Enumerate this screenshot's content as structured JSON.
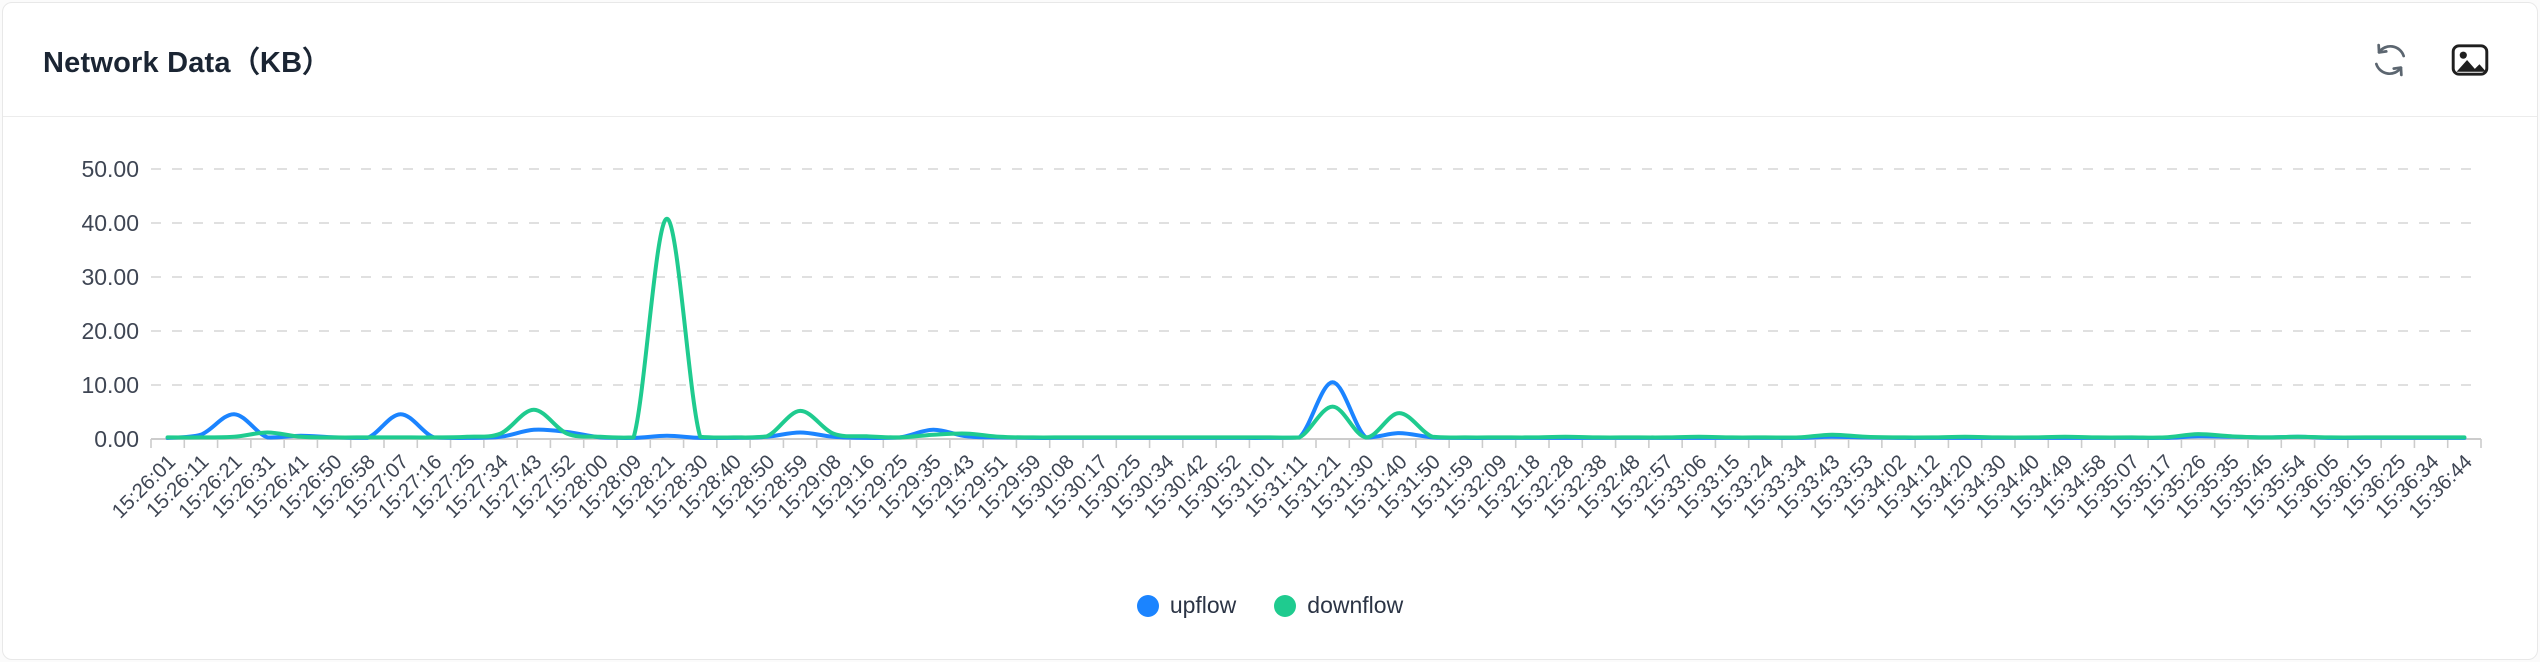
{
  "card": {
    "title": "Network Data（KB）"
  },
  "toolbar": {
    "icons": [
      "refresh-icon",
      "save-as-image-icon"
    ]
  },
  "colors": {
    "upflow": "#1b84ff",
    "downflow": "#1fcb8f",
    "axis_line": "#cccccc",
    "grid_line": "#d6d6d6",
    "tick_label": "#3f4654",
    "title_text": "#1b2533",
    "legend_text": "#2b3445",
    "card_border": "#e8e8e8",
    "refresh_icon": "#5c6670",
    "image_icon": "#1f1f1f"
  },
  "chart_data": {
    "type": "line",
    "title": "Network Data（KB）",
    "smooth": true,
    "grid": "dashed-horizontal",
    "legend_position": "bottom-center",
    "x_label_rotation": 45,
    "ylim": [
      0,
      50
    ],
    "yticks": [
      "0.00",
      "10.00",
      "20.00",
      "30.00",
      "40.00",
      "50.00"
    ],
    "x": [
      "15:26:01",
      "15:26:11",
      "15:26:21",
      "15:26:31",
      "15:26:41",
      "15:26:50",
      "15:26:58",
      "15:27:07",
      "15:27:16",
      "15:27:25",
      "15:27:34",
      "15:27:43",
      "15:27:52",
      "15:28:00",
      "15:28:09",
      "15:28:21",
      "15:28:30",
      "15:28:40",
      "15:28:50",
      "15:28:59",
      "15:29:08",
      "15:29:16",
      "15:29:25",
      "15:29:35",
      "15:29:43",
      "15:29:51",
      "15:29:59",
      "15:30:08",
      "15:30:17",
      "15:30:25",
      "15:30:34",
      "15:30:42",
      "15:30:52",
      "15:31:01",
      "15:31:11",
      "15:31:21",
      "15:31:30",
      "15:31:40",
      "15:31:50",
      "15:31:59",
      "15:32:09",
      "15:32:18",
      "15:32:28",
      "15:32:38",
      "15:32:48",
      "15:32:57",
      "15:33:06",
      "15:33:15",
      "15:33:24",
      "15:33:34",
      "15:33:43",
      "15:33:53",
      "15:34:02",
      "15:34:12",
      "15:34:20",
      "15:34:30",
      "15:34:40",
      "15:34:49",
      "15:34:58",
      "15:35:07",
      "15:35:17",
      "15:35:26",
      "15:35:35",
      "15:35:45",
      "15:35:54",
      "15:36:05",
      "15:36:15",
      "15:36:25",
      "15:36:34",
      "15:36:44"
    ],
    "series": [
      {
        "name": "upflow",
        "color": "#1b84ff",
        "values": [
          0.2,
          0.8,
          4.6,
          0.3,
          0.6,
          0.3,
          0.2,
          4.6,
          0.3,
          0.2,
          0.4,
          1.7,
          1.3,
          0.3,
          0.2,
          0.6,
          0.2,
          0.2,
          0.4,
          1.2,
          0.4,
          0.2,
          0.3,
          1.7,
          0.5,
          0.3,
          0.2,
          0.2,
          0.2,
          0.2,
          0.2,
          0.2,
          0.2,
          0.2,
          0.3,
          10.5,
          0.3,
          1.1,
          0.3,
          0.2,
          0.2,
          0.2,
          0.2,
          0.2,
          0.2,
          0.2,
          0.2,
          0.2,
          0.2,
          0.2,
          0.4,
          0.3,
          0.2,
          0.2,
          0.2,
          0.2,
          0.2,
          0.2,
          0.2,
          0.2,
          0.2,
          0.5,
          0.4,
          0.3,
          0.4,
          0.2,
          0.2,
          0.2,
          0.2,
          0.2
        ]
      },
      {
        "name": "downflow",
        "color": "#1fcb8f",
        "values": [
          0.3,
          0.3,
          0.4,
          1.2,
          0.4,
          0.3,
          0.3,
          0.3,
          0.3,
          0.4,
          1.0,
          5.4,
          1.0,
          0.4,
          0.3,
          40.8,
          0.4,
          0.3,
          0.5,
          5.2,
          1.0,
          0.5,
          0.3,
          0.8,
          1.0,
          0.4,
          0.3,
          0.3,
          0.3,
          0.3,
          0.3,
          0.3,
          0.3,
          0.3,
          0.3,
          6.0,
          0.3,
          4.8,
          0.4,
          0.3,
          0.3,
          0.3,
          0.4,
          0.3,
          0.3,
          0.3,
          0.4,
          0.3,
          0.3,
          0.3,
          0.8,
          0.4,
          0.3,
          0.3,
          0.4,
          0.3,
          0.3,
          0.4,
          0.3,
          0.3,
          0.3,
          0.9,
          0.5,
          0.3,
          0.4,
          0.3,
          0.3,
          0.3,
          0.3,
          0.3
        ]
      }
    ]
  }
}
